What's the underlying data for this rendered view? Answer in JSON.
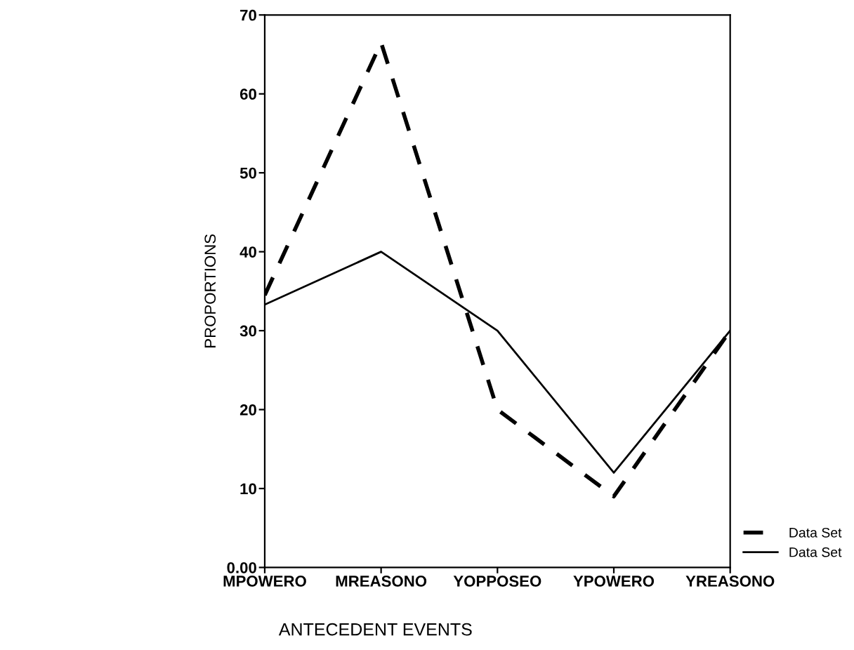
{
  "chart_data": {
    "type": "line",
    "xlabel": "ANTECEDENT EVENTS",
    "ylabel": "PROPORTIONS",
    "categories": [
      "MPOWERO",
      "MREASONO",
      "YOPPOSEO",
      "YPOWERO",
      "YREASONO"
    ],
    "series": [
      {
        "name": "Data Set",
        "color": "#000000",
        "line_style": "dashed",
        "values": [
          34.5,
          66.5,
          20,
          9,
          30
        ]
      },
      {
        "name": "Data Set",
        "color": "#000000",
        "line_style": "solid",
        "values": [
          33.3,
          40,
          30,
          12,
          30
        ]
      }
    ],
    "ylim": [
      0,
      70
    ],
    "yticks": [
      {
        "value": 0,
        "label": "0.00"
      },
      10,
      20,
      30,
      40,
      50,
      60,
      70
    ],
    "grid": false,
    "legend": "bottom right",
    "marker": "none"
  }
}
